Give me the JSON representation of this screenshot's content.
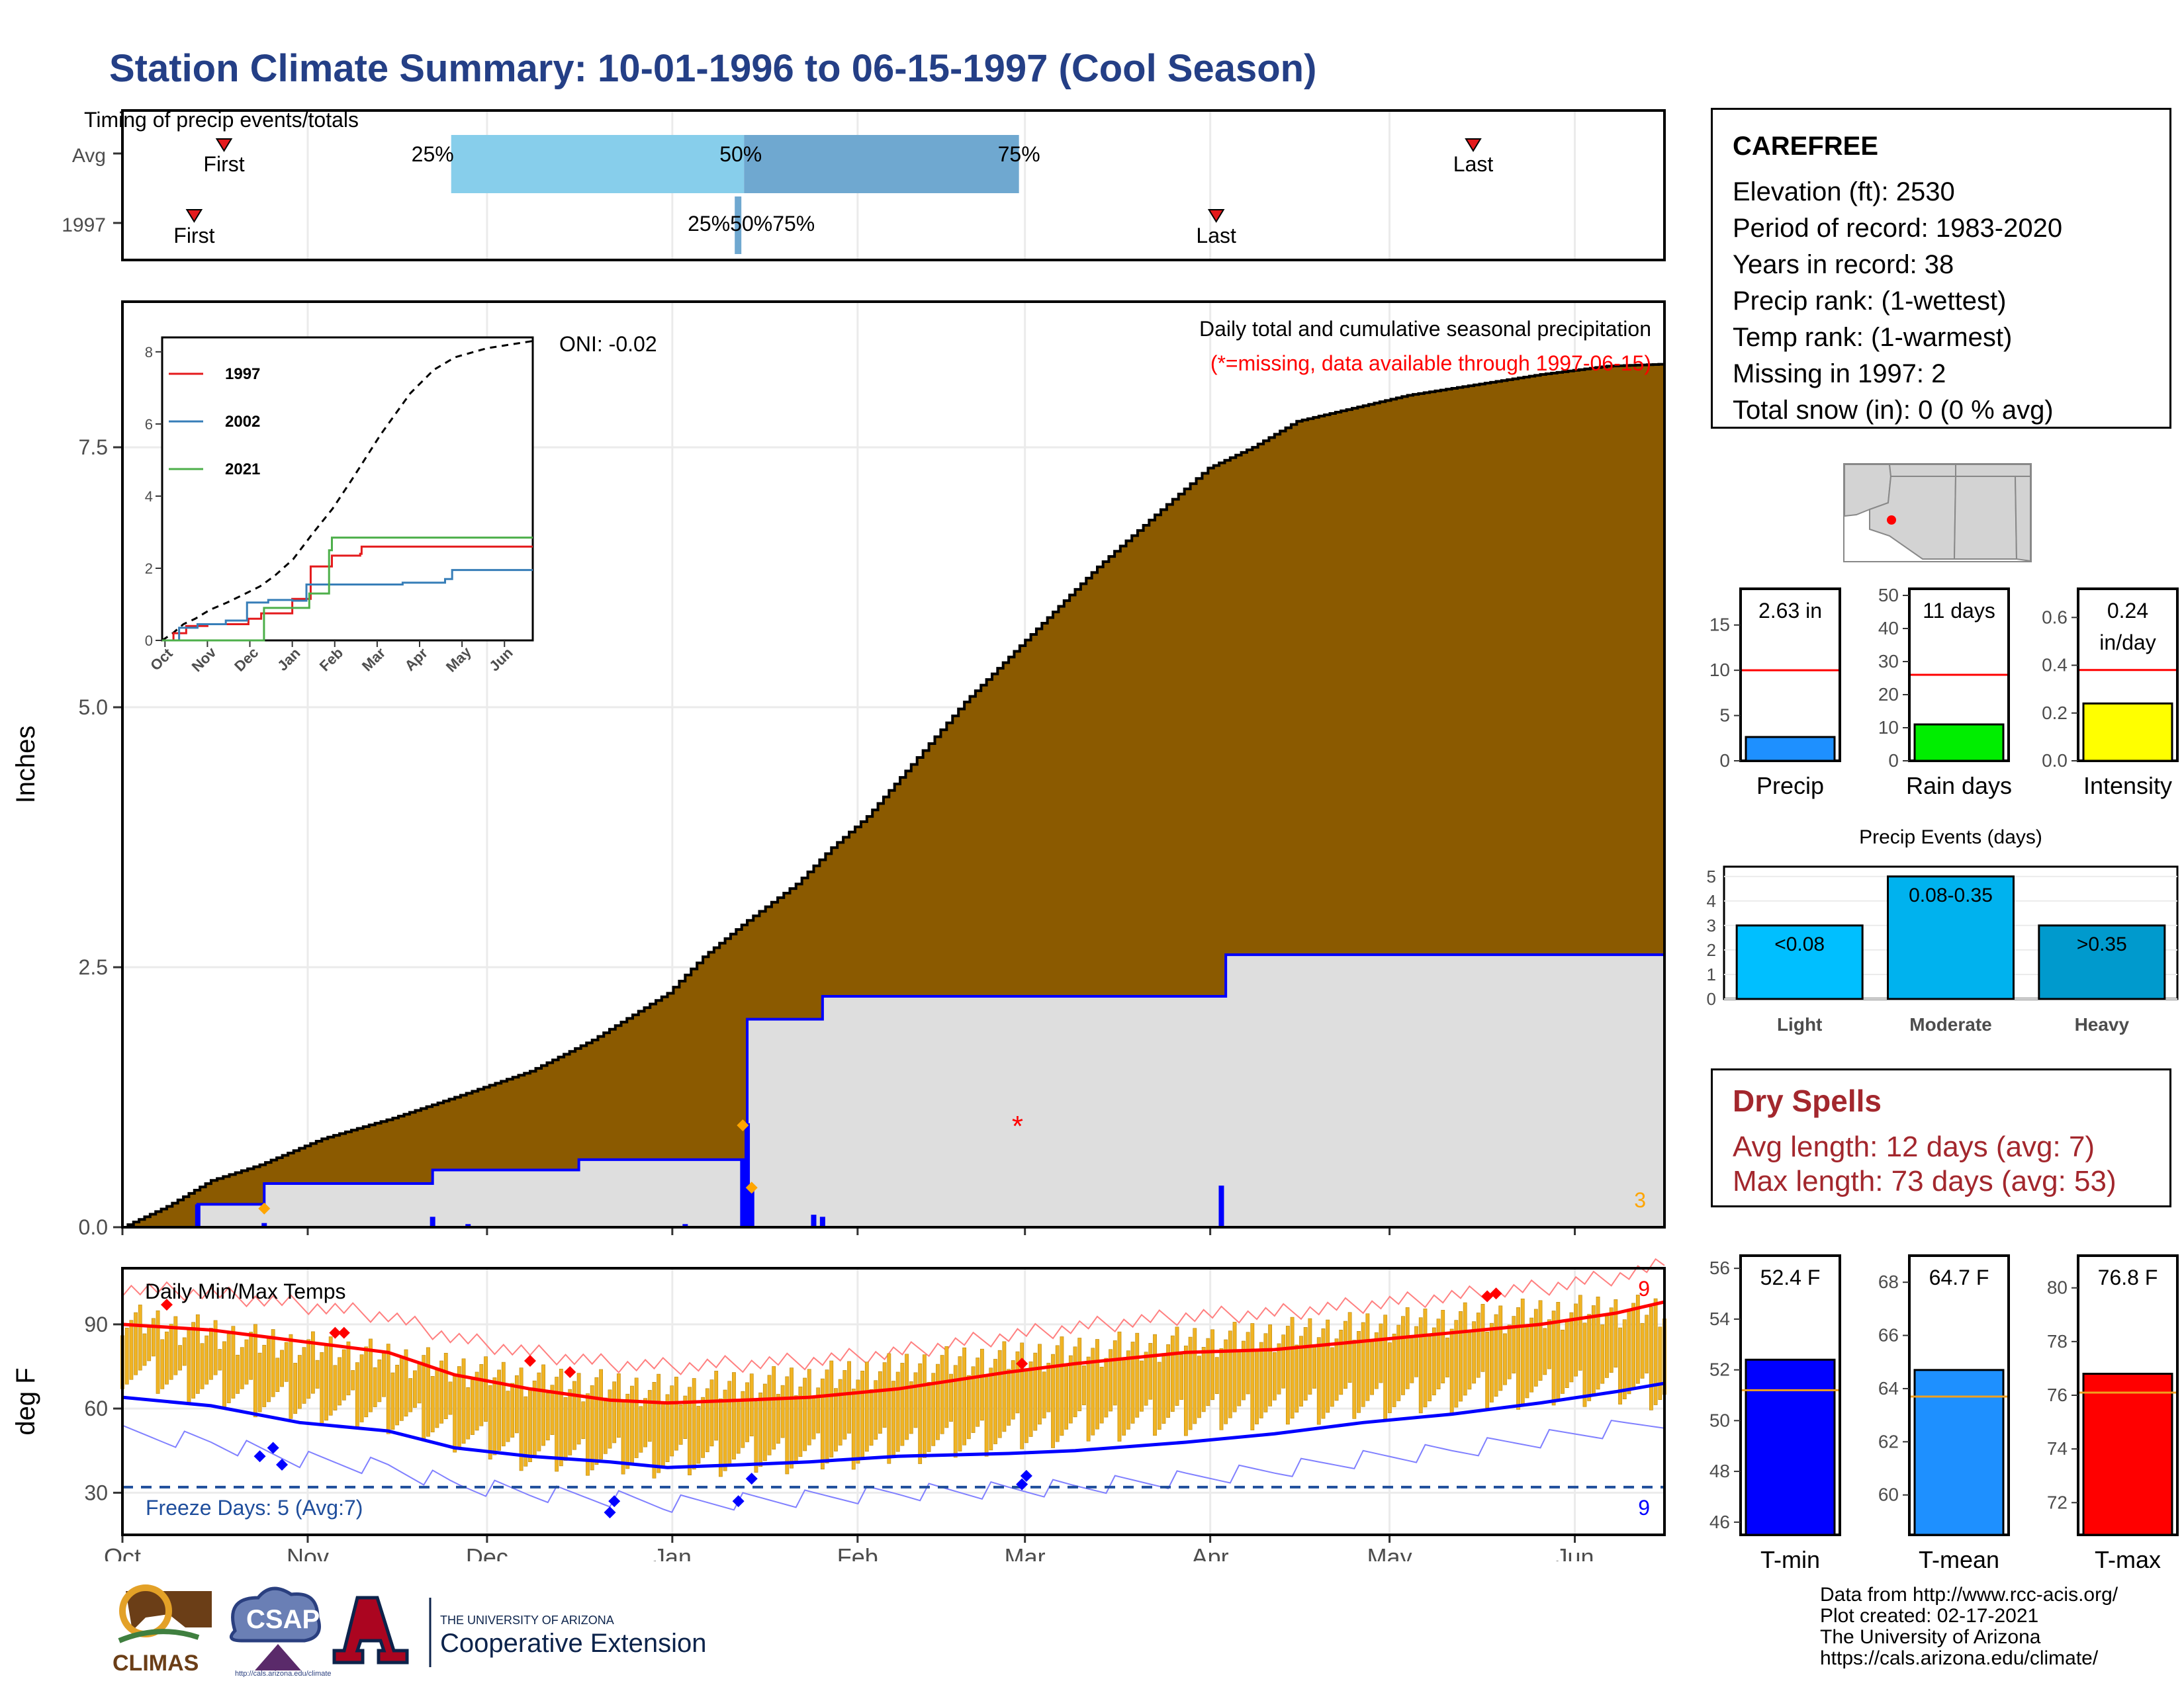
{
  "title": "Station Climate Summary: 10-01-1996 to 06-15-1997 (Cool Season)",
  "station": {
    "name": "CAREFREE",
    "lines": [
      "Elevation (ft): 2530",
      "Period of record: 1983-2020",
      "Years in record: 38",
      "Precip rank:  (1-wettest)",
      "Temp rank:  (1-warmest)",
      "Missing in 1997: 2",
      "Total snow (in): 0 (0 % avg)"
    ]
  },
  "dry_spells": {
    "title": "Dry Spells",
    "avg": "Avg length: 12 days (avg: 7)",
    "max": "Max length: 73 days (avg: 53)"
  },
  "credits": [
    "Data from http://www.rcc-acis.org/",
    "Plot created: 02-17-2021",
    "The University of Arizona",
    "https://cals.arizona.edu/climate/"
  ],
  "logos": {
    "climas": "CLIMAS",
    "csap": "CSAP",
    "csap_url": "http://cals.arizona.edu/climate",
    "ua_small": "THE UNIVERSITY OF ARIZONA",
    "ua_big": "Cooperative Extension"
  },
  "colors": {
    "title": "#243f86",
    "cumulative_avg": "#8b5a00",
    "cumulative_obs": "#dedede",
    "obs_line": "#0000ff",
    "light_blue": "#87ceeb",
    "mid_blue": "#6fa8d0",
    "gold": "#f0b323",
    "red": "#ff0000",
    "blue": "#0000ff",
    "dry_spell": "#a3272d"
  },
  "chart_data": [
    {
      "type": "timeline",
      "title": "Timing of precip events/totals",
      "rows": [
        "Avg",
        "1997"
      ],
      "avg": {
        "first": "1996-10-18",
        "p25": "1996-11-25",
        "p50": "1997-01-13",
        "p75": "1997-02-28",
        "last": "1997-05-15"
      },
      "obs_1997": {
        "first": "1996-10-13",
        "p25": "1997-01-12",
        "p50": "1997-01-12",
        "p75": "1997-01-12",
        "last": "1997-04-02"
      },
      "labels": {
        "first": "First",
        "last": "Last",
        "p25": "25%",
        "p50": "50%",
        "p75": "75%",
        "obs_overlap": "25%50%75%"
      }
    },
    {
      "type": "area",
      "title": "Daily total and cumulative seasonal precipitation",
      "subtitle": "(*=missing, data available through 1997-06-15)",
      "oni": "ONI: -0.02",
      "ylabel": "Inches",
      "ylim": [
        0,
        8.9
      ],
      "yticks": [
        0.0,
        2.5,
        5.0,
        7.5
      ],
      "ytick_labels": [
        "0.0",
        "2.5",
        "5.0",
        "7.5"
      ],
      "xticks": [
        "Oct",
        "Nov",
        "Dec",
        "Jan",
        "Feb",
        "Mar",
        "Apr",
        "May",
        "Jun"
      ],
      "cumulative_avg": [
        [
          0,
          0
        ],
        [
          10,
          0.2
        ],
        [
          20,
          0.45
        ],
        [
          31,
          0.6
        ],
        [
          45,
          0.85
        ],
        [
          61,
          1.05
        ],
        [
          75,
          1.25
        ],
        [
          92,
          1.5
        ],
        [
          106,
          1.8
        ],
        [
          123,
          2.25
        ],
        [
          131,
          2.6
        ],
        [
          141,
          2.95
        ],
        [
          152,
          3.3
        ],
        [
          160,
          3.65
        ],
        [
          168,
          3.95
        ],
        [
          178,
          4.45
        ],
        [
          190,
          5.05
        ],
        [
          205,
          5.7
        ],
        [
          220,
          6.35
        ],
        [
          233,
          6.85
        ],
        [
          245,
          7.3
        ],
        [
          255,
          7.5
        ],
        [
          265,
          7.75
        ],
        [
          275,
          7.85
        ],
        [
          290,
          8.0
        ],
        [
          305,
          8.1
        ],
        [
          320,
          8.2
        ],
        [
          335,
          8.28
        ],
        [
          348,
          8.3
        ]
      ],
      "cumulative_obs": [
        [
          0,
          0
        ],
        [
          17,
          0.22
        ],
        [
          31,
          0.22
        ],
        [
          32,
          0.42
        ],
        [
          61,
          0.42
        ],
        [
          70,
          0.55
        ],
        [
          102,
          0.55
        ],
        [
          103,
          0.65
        ],
        [
          140,
          0.65
        ],
        [
          141,
          2.0
        ],
        [
          157,
          2.0
        ],
        [
          158,
          2.22
        ],
        [
          248,
          2.22
        ],
        [
          249,
          2.62
        ],
        [
          348,
          2.62
        ]
      ],
      "daily_bars": [
        [
          17,
          0.22
        ],
        [
          32,
          0.04
        ],
        [
          70,
          0.1
        ],
        [
          78,
          0.03
        ],
        [
          127,
          0.03
        ],
        [
          140,
          0.65
        ],
        [
          141,
          1.0
        ],
        [
          142,
          0.4
        ],
        [
          156,
          0.12
        ],
        [
          158,
          0.1
        ],
        [
          248,
          0.4
        ]
      ],
      "missing_marks": [
        [
          202,
          0.98
        ]
      ],
      "extreme_marks": [
        [
          32,
          0.18
        ],
        [
          140,
          0.98
        ],
        [
          142,
          0.38
        ]
      ],
      "extreme_count": "3",
      "inset": {
        "xticks": [
          "Oct",
          "Nov",
          "Dec",
          "Jan",
          "Feb",
          "Mar",
          "Apr",
          "May",
          "Jun"
        ],
        "yticks": [
          0,
          2,
          4,
          6,
          8
        ],
        "series": [
          {
            "name": "1997",
            "color": "#e41a1c",
            "values": [
              [
                0,
                0
              ],
              [
                8,
                0.2
              ],
              [
                17,
                0.4
              ],
              [
                32,
                0.45
              ],
              [
                61,
                0.6
              ],
              [
                70,
                0.75
              ],
              [
                90,
                0.75
              ],
              [
                92,
                1.15
              ],
              [
                104,
                1.15
              ],
              [
                105,
                2.05
              ],
              [
                119,
                2.05
              ],
              [
                120,
                2.35
              ],
              [
                140,
                2.4
              ],
              [
                141,
                2.6
              ],
              [
                248,
                2.6
              ],
              [
                262,
                2.6
              ]
            ]
          },
          {
            "name": "2002",
            "color": "#377eb8",
            "values": [
              [
                0,
                0
              ],
              [
                12,
                0.35
              ],
              [
                25,
                0.45
              ],
              [
                45,
                0.55
              ],
              [
                60,
                1.05
              ],
              [
                75,
                1.12
              ],
              [
                92,
                1.1
              ],
              [
                102,
                1.55
              ],
              [
                123,
                1.55
              ],
              [
                140,
                1.55
              ],
              [
                170,
                1.6
              ],
              [
                185,
                1.6
              ],
              [
                200,
                1.7
              ],
              [
                205,
                1.95
              ],
              [
                262,
                1.95
              ]
            ]
          },
          {
            "name": "2021",
            "color": "#4daf4a",
            "values": [
              [
                0,
                0
              ],
              [
                70,
                0
              ],
              [
                72,
                0.9
              ],
              [
                92,
                0.9
              ],
              [
                104,
                1.3
              ],
              [
                118,
                2.5
              ],
              [
                120,
                2.85
              ],
              [
                262,
                2.85
              ]
            ]
          }
        ],
        "avg_cumulative": [
          [
            0,
            0
          ],
          [
            10,
            0.2
          ],
          [
            20,
            0.45
          ],
          [
            31,
            0.6
          ],
          [
            45,
            0.85
          ],
          [
            61,
            1.05
          ],
          [
            75,
            1.25
          ],
          [
            92,
            1.5
          ],
          [
            106,
            1.8
          ],
          [
            123,
            2.25
          ],
          [
            141,
            2.95
          ],
          [
            160,
            3.65
          ],
          [
            178,
            4.45
          ],
          [
            205,
            5.7
          ],
          [
            233,
            6.85
          ],
          [
            255,
            7.5
          ],
          [
            275,
            7.85
          ],
          [
            305,
            8.1
          ],
          [
            348,
            8.3
          ]
        ]
      }
    },
    {
      "type": "bar",
      "title": "Daily Min/Max Temps",
      "ylabel": "deg F",
      "yticks": [
        30,
        60,
        90
      ],
      "ylim": [
        15,
        110
      ],
      "xticks": [
        "Oct",
        "Nov",
        "Dec",
        "Jan",
        "Feb",
        "Mar",
        "Apr",
        "May",
        "Jun"
      ],
      "freeze_label": "Freeze Days: 5 (Avg:7)",
      "freeze_line": 32,
      "max_record_count": "9",
      "min_record_count": "9",
      "avg_max": [
        [
          0,
          90
        ],
        [
          20,
          88
        ],
        [
          40,
          84
        ],
        [
          60,
          80
        ],
        [
          75,
          72
        ],
        [
          92,
          67
        ],
        [
          110,
          63
        ],
        [
          123,
          62
        ],
        [
          140,
          63
        ],
        [
          155,
          64
        ],
        [
          175,
          67
        ],
        [
          200,
          73
        ],
        [
          215,
          76
        ],
        [
          240,
          80
        ],
        [
          260,
          81
        ],
        [
          280,
          84
        ],
        [
          300,
          87
        ],
        [
          320,
          90
        ],
        [
          337,
          94
        ],
        [
          348,
          98
        ]
      ],
      "avg_min": [
        [
          0,
          64
        ],
        [
          20,
          61
        ],
        [
          40,
          55
        ],
        [
          60,
          52
        ],
        [
          75,
          46
        ],
        [
          92,
          43
        ],
        [
          110,
          41
        ],
        [
          123,
          39
        ],
        [
          140,
          40
        ],
        [
          155,
          41
        ],
        [
          175,
          43
        ],
        [
          200,
          44
        ],
        [
          215,
          45
        ],
        [
          240,
          48
        ],
        [
          260,
          51
        ],
        [
          280,
          55
        ],
        [
          300,
          58
        ],
        [
          320,
          62
        ],
        [
          337,
          66
        ],
        [
          348,
          69
        ]
      ],
      "max_record_marks": [
        [
          10,
          97
        ],
        [
          48,
          87
        ],
        [
          50,
          87
        ],
        [
          92,
          77
        ],
        [
          101,
          73
        ],
        [
          203,
          76
        ],
        [
          308,
          100
        ],
        [
          310,
          101
        ]
      ],
      "min_record_marks": [
        [
          31,
          43
        ],
        [
          34,
          46
        ],
        [
          36,
          40
        ],
        [
          110,
          23
        ],
        [
          111,
          27
        ],
        [
          139,
          27
        ],
        [
          142,
          35
        ],
        [
          203,
          33
        ],
        [
          204,
          36
        ]
      ],
      "bar_season_points": [
        [
          0,
          92,
          72
        ],
        [
          30,
          84,
          62
        ],
        [
          60,
          78,
          56
        ],
        [
          92,
          70,
          42
        ],
        [
          123,
          66,
          40
        ],
        [
          155,
          70,
          42
        ],
        [
          185,
          76,
          46
        ],
        [
          215,
          80,
          52
        ],
        [
          245,
          84,
          56
        ],
        [
          275,
          88,
          60
        ],
        [
          305,
          92,
          64
        ],
        [
          335,
          95,
          66
        ],
        [
          348,
          94,
          64
        ]
      ]
    },
    {
      "type": "bar",
      "title": "Precip",
      "values": [
        {
          "label": "2.63 in",
          "value": 2.63,
          "avg": 10.0
        }
      ],
      "ylim": [
        0,
        19
      ],
      "yticks": [
        0,
        5,
        10,
        15
      ]
    },
    {
      "type": "bar",
      "title": "Rain days",
      "values": [
        {
          "label": "11 days",
          "value": 11,
          "avg": 26
        }
      ],
      "ylim": [
        0,
        52
      ],
      "yticks": [
        0,
        10,
        20,
        30,
        40,
        50
      ]
    },
    {
      "type": "bar",
      "title": "Intensity",
      "values": [
        {
          "label": "0.24",
          "label2": "in/day",
          "value": 0.24,
          "avg": 0.38
        }
      ],
      "ylim": [
        0,
        0.72
      ],
      "yticks": [
        0.0,
        0.2,
        0.4,
        0.6
      ],
      "ytick_labels": [
        "0.0",
        "0.2",
        "0.4",
        "0.6"
      ]
    },
    {
      "type": "bar",
      "title": "Precip Events (days)",
      "categories": [
        "Light",
        "Moderate",
        "Heavy"
      ],
      "bar_labels": [
        "<0.08",
        "0.08-0.35",
        ">0.35"
      ],
      "values": [
        3,
        5,
        3
      ],
      "ylim": [
        0,
        5.4
      ],
      "yticks": [
        0,
        1,
        2,
        3,
        4,
        5
      ]
    },
    {
      "type": "bar",
      "title": "T-min",
      "values": [
        {
          "label": "52.4 F",
          "value": 52.4,
          "avg": 51.2
        }
      ],
      "ylim": [
        45.5,
        56.5
      ],
      "yticks": [
        46,
        48,
        50,
        52,
        54,
        56
      ]
    },
    {
      "type": "bar",
      "title": "T-mean",
      "values": [
        {
          "label": "64.7 F",
          "value": 64.7,
          "avg": 63.7
        }
      ],
      "ylim": [
        58.5,
        69.0
      ],
      "yticks": [
        60,
        62,
        64,
        66,
        68
      ]
    },
    {
      "type": "bar",
      "title": "T-max",
      "values": [
        {
          "label": "76.8 F",
          "value": 76.8,
          "avg": 76.1
        }
      ],
      "ylim": [
        70.8,
        81.2
      ],
      "yticks": [
        72,
        74,
        76,
        78,
        80
      ]
    }
  ]
}
